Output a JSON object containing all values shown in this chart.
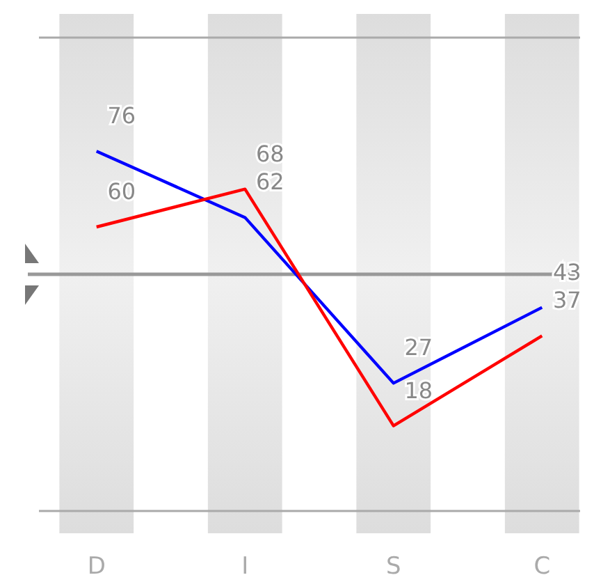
{
  "chart_data": {
    "type": "line",
    "categories": [
      "D",
      "I",
      "S",
      "C"
    ],
    "series": [
      {
        "color": "#0000ff",
        "values": [
          76,
          62,
          27,
          43
        ]
      },
      {
        "color": "#ff0000",
        "values": [
          60,
          68,
          18,
          37
        ]
      }
    ],
    "ylim": [
      0,
      100
    ],
    "tick_labels": "x",
    "ref_lines": [
      {
        "axis": "y",
        "value": 50,
        "color": "#999999"
      }
    ],
    "bands": [
      {
        "axis": "x",
        "from": "D",
        "to": "D",
        "color": "#dddddd"
      },
      {
        "axis": "x",
        "from": "I",
        "to": "I",
        "color": "#dddddd"
      },
      {
        "axis": "x",
        "from": "S",
        "to": "S",
        "color": "#dddddd"
      },
      {
        "axis": "x",
        "from": "C",
        "to": "C",
        "color": "#dddddd"
      }
    ],
    "data_labels": true,
    "marker": "none"
  }
}
